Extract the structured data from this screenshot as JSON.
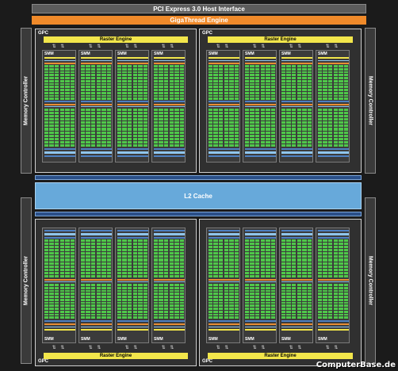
{
  "header": {
    "pcie_label": "PCI Express 3.0 Host Interface",
    "gigathread_label": "GigaThread Engine"
  },
  "memory_controllers": {
    "left_top": "Memory Controller",
    "left_bottom": "Memory Controller",
    "right_top": "Memory Controller",
    "right_bottom": "Memory Controller"
  },
  "cache": {
    "l2_label": "L2 Cache"
  },
  "gpc": {
    "label": "GPC",
    "raster_label": "Raster Engine",
    "smm_label": "SMM",
    "arrows": "⇅ ⇅"
  },
  "watermark": "ComputerBase.de",
  "colors": {
    "background": "#1b1b1b",
    "gigathread": "#f08a2a",
    "l2_cache": "#67a9da",
    "raster": "#f2e64b",
    "cores": "#4fc84a",
    "bus": "#2a4f88"
  }
}
